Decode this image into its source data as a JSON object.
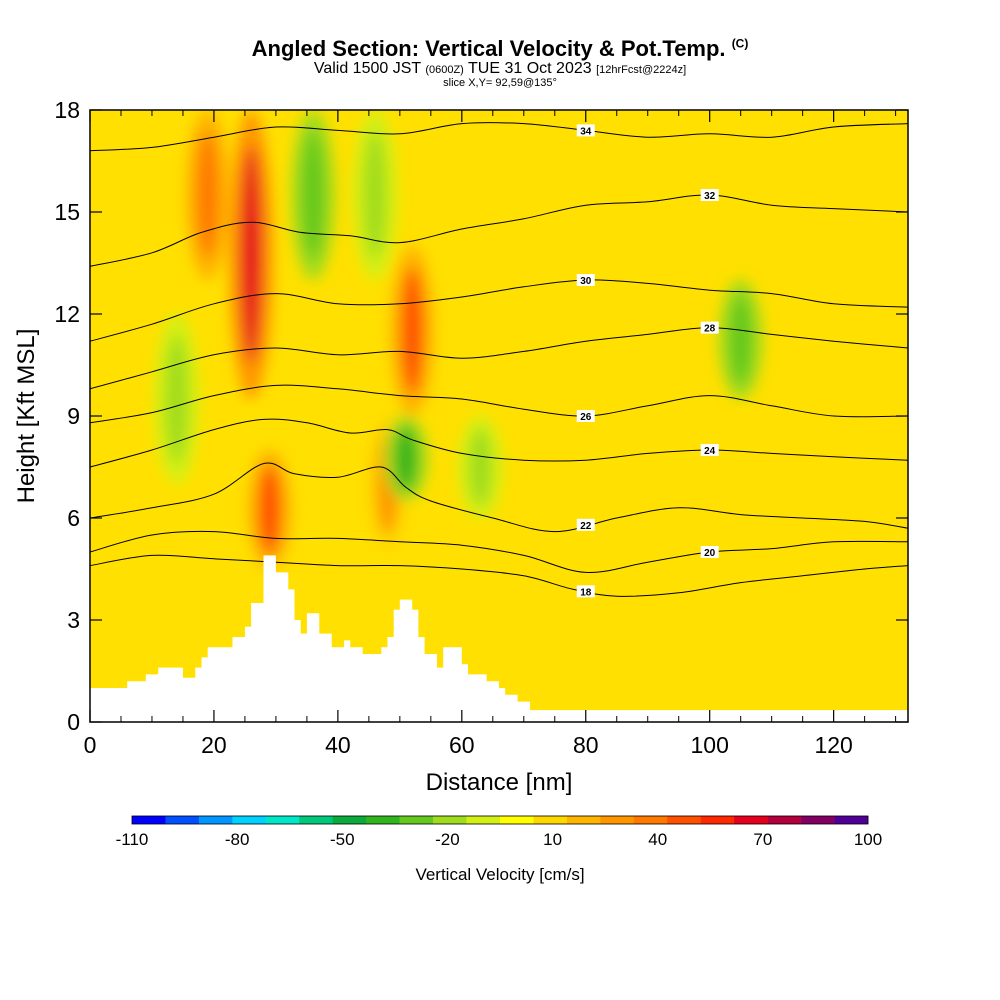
{
  "title": {
    "main": "Angled Section: Vertical Velocity & Pot.Temp.",
    "main_tag": "(C)",
    "line2_a": "Valid 1500 JST",
    "line2_b": "(0600Z)",
    "line2_c": "TUE 31 Oct 2023",
    "line2_d": "[12hrFcst@2224z]",
    "line3": "slice X,Y= 92,59@135°"
  },
  "chart_data": {
    "type": "heatmap",
    "xlabel": "Distance [nm]",
    "ylabel": "Height [Kft MSL]",
    "xlim": [
      0,
      132
    ],
    "ylim": [
      0,
      18
    ],
    "xticks": [
      0,
      20,
      40,
      60,
      80,
      100,
      120
    ],
    "yticks": [
      0,
      3,
      6,
      9,
      12,
      15,
      18
    ],
    "colorbar": {
      "title": "Vertical Velocity [cm/s]",
      "tick_labels": [
        -110,
        -80,
        -50,
        -20,
        10,
        40,
        70,
        100
      ],
      "levels": [
        -110,
        -100,
        -90,
        -80,
        -70,
        -60,
        -50,
        -40,
        -30,
        -20,
        -10,
        0,
        10,
        20,
        30,
        40,
        50,
        60,
        70,
        80,
        90,
        100
      ],
      "colors": [
        "#0000ff",
        "#0050ff",
        "#0096ff",
        "#00d2ff",
        "#00e6c8",
        "#00c87a",
        "#0aaa3c",
        "#32b41e",
        "#64c81e",
        "#a0dc1e",
        "#d2f014",
        "#ffff00",
        "#ffd700",
        "#ffb400",
        "#ff9600",
        "#ff7800",
        "#ff5000",
        "#ff2800",
        "#e6001e",
        "#b4003c",
        "#820064",
        "#500096"
      ]
    },
    "background_color": "#ffe000",
    "vertical_velocity_features": [
      {
        "kind": "updraft",
        "x_center": 26,
        "z_bottom": 9.5,
        "z_top": 18,
        "peak": 70
      },
      {
        "kind": "updraft",
        "x_center": 19,
        "z_bottom": 13,
        "z_top": 18,
        "peak": 40
      },
      {
        "kind": "updraft",
        "x_center": 29,
        "z_bottom": 4.5,
        "z_top": 8,
        "peak": 50
      },
      {
        "kind": "updraft",
        "x_center": 52,
        "z_bottom": 9,
        "z_top": 14,
        "peak": 50
      },
      {
        "kind": "updraft",
        "x_center": 48,
        "z_bottom": 5,
        "z_top": 9,
        "peak": 30
      },
      {
        "kind": "downdraft",
        "x_center": 36,
        "z_bottom": 13,
        "z_top": 18,
        "peak": -30
      },
      {
        "kind": "downdraft",
        "x_center": 46,
        "z_bottom": 13,
        "z_top": 18,
        "peak": -20
      },
      {
        "kind": "downdraft",
        "x_center": 51,
        "z_bottom": 6.5,
        "z_top": 9,
        "peak": -40
      },
      {
        "kind": "downdraft",
        "x_center": 14,
        "z_bottom": 7,
        "z_top": 12,
        "peak": -20
      },
      {
        "kind": "downdraft",
        "x_center": 105,
        "z_bottom": 9.5,
        "z_top": 13,
        "peak": -30
      },
      {
        "kind": "downdraft",
        "x_center": 63,
        "z_bottom": 6,
        "z_top": 9,
        "peak": -20
      }
    ],
    "potential_temperature_contours": [
      {
        "value": 18,
        "label": "18",
        "points": [
          [
            0,
            4.6
          ],
          [
            10,
            4.9
          ],
          [
            20,
            4.8
          ],
          [
            30,
            4.7
          ],
          [
            40,
            4.6
          ],
          [
            50,
            4.6
          ],
          [
            60,
            4.5
          ],
          [
            70,
            4.3
          ],
          [
            78,
            3.9
          ],
          [
            85,
            3.7
          ],
          [
            95,
            3.8
          ],
          [
            105,
            4.1
          ],
          [
            115,
            4.3
          ],
          [
            125,
            4.5
          ],
          [
            132,
            4.6
          ]
        ]
      },
      {
        "value": 20,
        "label": "20",
        "points": [
          [
            0,
            5.0
          ],
          [
            10,
            5.5
          ],
          [
            20,
            5.6
          ],
          [
            30,
            5.4
          ],
          [
            40,
            5.4
          ],
          [
            50,
            5.3
          ],
          [
            60,
            5.2
          ],
          [
            70,
            4.9
          ],
          [
            80,
            4.4
          ],
          [
            90,
            4.7
          ],
          [
            100,
            5.0
          ],
          [
            110,
            5.1
          ],
          [
            120,
            5.3
          ],
          [
            132,
            5.3
          ]
        ]
      },
      {
        "value": 22,
        "label": "22",
        "points": [
          [
            0,
            6.0
          ],
          [
            10,
            6.3
          ],
          [
            20,
            6.7
          ],
          [
            28,
            7.6
          ],
          [
            33,
            7.3
          ],
          [
            40,
            7.2
          ],
          [
            47,
            7.5
          ],
          [
            51,
            6.9
          ],
          [
            55,
            6.5
          ],
          [
            65,
            6.0
          ],
          [
            75,
            5.6
          ],
          [
            85,
            6.0
          ],
          [
            95,
            6.3
          ],
          [
            105,
            6.1
          ],
          [
            115,
            6.0
          ],
          [
            125,
            5.9
          ],
          [
            132,
            5.7
          ]
        ]
      },
      {
        "value": 24,
        "label": "24",
        "points": [
          [
            0,
            7.5
          ],
          [
            10,
            8.0
          ],
          [
            20,
            8.6
          ],
          [
            28,
            8.9
          ],
          [
            35,
            8.8
          ],
          [
            42,
            8.5
          ],
          [
            48,
            8.6
          ],
          [
            52,
            8.3
          ],
          [
            60,
            7.9
          ],
          [
            70,
            7.7
          ],
          [
            80,
            7.7
          ],
          [
            90,
            7.9
          ],
          [
            100,
            8.0
          ],
          [
            110,
            7.9
          ],
          [
            120,
            7.8
          ],
          [
            132,
            7.7
          ]
        ]
      },
      {
        "value": 26,
        "label": "26",
        "points": [
          [
            0,
            8.8
          ],
          [
            10,
            9.1
          ],
          [
            20,
            9.6
          ],
          [
            30,
            9.9
          ],
          [
            40,
            9.8
          ],
          [
            50,
            9.6
          ],
          [
            60,
            9.5
          ],
          [
            70,
            9.2
          ],
          [
            80,
            9.0
          ],
          [
            90,
            9.3
          ],
          [
            100,
            9.6
          ],
          [
            110,
            9.3
          ],
          [
            120,
            9.0
          ],
          [
            132,
            9.0
          ]
        ]
      },
      {
        "value": 28,
        "label": "28",
        "points": [
          [
            0,
            9.8
          ],
          [
            10,
            10.3
          ],
          [
            20,
            10.8
          ],
          [
            30,
            11.0
          ],
          [
            40,
            10.8
          ],
          [
            50,
            10.9
          ],
          [
            60,
            10.7
          ],
          [
            70,
            10.9
          ],
          [
            80,
            11.2
          ],
          [
            90,
            11.4
          ],
          [
            100,
            11.6
          ],
          [
            110,
            11.4
          ],
          [
            120,
            11.2
          ],
          [
            132,
            11.0
          ]
        ]
      },
      {
        "value": 30,
        "label": "30",
        "points": [
          [
            0,
            11.2
          ],
          [
            10,
            11.7
          ],
          [
            20,
            12.3
          ],
          [
            30,
            12.6
          ],
          [
            40,
            12.3
          ],
          [
            50,
            12.3
          ],
          [
            60,
            12.5
          ],
          [
            70,
            12.8
          ],
          [
            80,
            13.0
          ],
          [
            90,
            12.9
          ],
          [
            100,
            12.7
          ],
          [
            110,
            12.6
          ],
          [
            120,
            12.3
          ],
          [
            132,
            12.2
          ]
        ]
      },
      {
        "value": 32,
        "label": "32",
        "points": [
          [
            0,
            13.4
          ],
          [
            10,
            13.8
          ],
          [
            18,
            14.4
          ],
          [
            26,
            14.7
          ],
          [
            34,
            14.4
          ],
          [
            42,
            14.3
          ],
          [
            50,
            14.1
          ],
          [
            60,
            14.5
          ],
          [
            70,
            14.8
          ],
          [
            80,
            15.2
          ],
          [
            90,
            15.3
          ],
          [
            100,
            15.5
          ],
          [
            110,
            15.2
          ],
          [
            120,
            15.1
          ],
          [
            132,
            15.0
          ]
        ]
      },
      {
        "value": 34,
        "label": "34",
        "points": [
          [
            0,
            16.8
          ],
          [
            10,
            16.9
          ],
          [
            20,
            17.2
          ],
          [
            30,
            17.5
          ],
          [
            40,
            17.4
          ],
          [
            50,
            17.3
          ],
          [
            60,
            17.6
          ],
          [
            70,
            17.6
          ],
          [
            80,
            17.4
          ],
          [
            90,
            17.2
          ],
          [
            100,
            17.3
          ],
          [
            110,
            17.2
          ],
          [
            120,
            17.5
          ],
          [
            132,
            17.6
          ]
        ]
      }
    ],
    "terrain_profile": [
      [
        0,
        1.0
      ],
      [
        6,
        1.0
      ],
      [
        6,
        1.2
      ],
      [
        9,
        1.2
      ],
      [
        9,
        1.4
      ],
      [
        11,
        1.4
      ],
      [
        11,
        1.6
      ],
      [
        15,
        1.6
      ],
      [
        15,
        1.3
      ],
      [
        17,
        1.3
      ],
      [
        17,
        1.6
      ],
      [
        18,
        1.6
      ],
      [
        18,
        1.9
      ],
      [
        19,
        1.9
      ],
      [
        19,
        2.2
      ],
      [
        23,
        2.2
      ],
      [
        23,
        2.5
      ],
      [
        25,
        2.5
      ],
      [
        25,
        2.8
      ],
      [
        26,
        2.8
      ],
      [
        26,
        3.5
      ],
      [
        28,
        3.5
      ],
      [
        28,
        4.9
      ],
      [
        30,
        4.9
      ],
      [
        30,
        4.4
      ],
      [
        32,
        4.4
      ],
      [
        32,
        3.9
      ],
      [
        33,
        3.9
      ],
      [
        33,
        3.0
      ],
      [
        34,
        3.0
      ],
      [
        34,
        2.6
      ],
      [
        35,
        2.6
      ],
      [
        35,
        3.2
      ],
      [
        37,
        3.2
      ],
      [
        37,
        2.6
      ],
      [
        39,
        2.6
      ],
      [
        39,
        2.2
      ],
      [
        41,
        2.2
      ],
      [
        41,
        2.4
      ],
      [
        42,
        2.4
      ],
      [
        42,
        2.2
      ],
      [
        44,
        2.2
      ],
      [
        44,
        2.0
      ],
      [
        47,
        2.0
      ],
      [
        47,
        2.2
      ],
      [
        48,
        2.2
      ],
      [
        48,
        2.5
      ],
      [
        49,
        2.5
      ],
      [
        49,
        3.3
      ],
      [
        50,
        3.3
      ],
      [
        50,
        3.6
      ],
      [
        52,
        3.6
      ],
      [
        52,
        3.3
      ],
      [
        53,
        3.3
      ],
      [
        53,
        2.5
      ],
      [
        54,
        2.5
      ],
      [
        54,
        2.0
      ],
      [
        56,
        2.0
      ],
      [
        56,
        1.6
      ],
      [
        57,
        1.6
      ],
      [
        57,
        2.2
      ],
      [
        60,
        2.2
      ],
      [
        60,
        1.7
      ],
      [
        61,
        1.7
      ],
      [
        61,
        1.4
      ],
      [
        64,
        1.4
      ],
      [
        64,
        1.2
      ],
      [
        66,
        1.2
      ],
      [
        66,
        1.0
      ],
      [
        67,
        1.0
      ],
      [
        67,
        0.8
      ],
      [
        69,
        0.8
      ],
      [
        69,
        0.6
      ],
      [
        71,
        0.6
      ],
      [
        71,
        0.35
      ],
      [
        132,
        0.35
      ]
    ]
  }
}
